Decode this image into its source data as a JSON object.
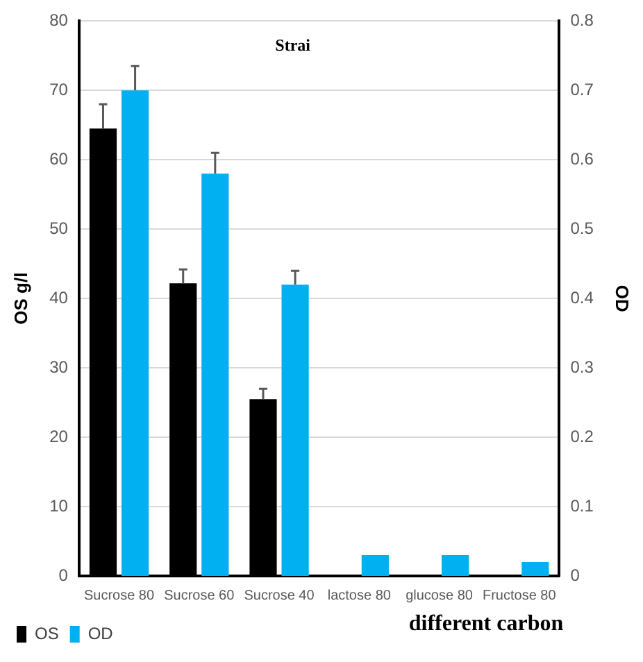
{
  "chart_data": {
    "type": "bar",
    "categories": [
      "Sucrose 80",
      "Sucrose 60",
      "Sucrose 40",
      "lactose 80",
      "glucose 80",
      "Fructose 80"
    ],
    "series": [
      {
        "name": "OS",
        "color": "#000000",
        "values": [
          64.5,
          42.2,
          25.5,
          null,
          null,
          null
        ],
        "errors": [
          [
            64.5,
            68
          ],
          [
            42.2,
            44.2
          ],
          [
            25.5,
            27
          ],
          null,
          null,
          null
        ]
      },
      {
        "name": "OD",
        "color": "#00b0f0",
        "axis": "y2",
        "values": [
          0.7,
          0.58,
          0.42,
          0.03,
          0.03,
          0.02
        ],
        "errors": [
          [
            0.7,
            0.735
          ],
          [
            0.58,
            0.61
          ],
          [
            0.42,
            0.44
          ],
          null,
          null,
          null
        ]
      }
    ],
    "xlabel": "different carbon",
    "ylabel": "OS g/l",
    "y2label": "OD",
    "annotations": [
      "Strai"
    ],
    "ylim": [
      0,
      80
    ],
    "yticks": [
      0,
      10,
      20,
      30,
      40,
      50,
      60,
      70,
      80
    ],
    "y2lim": [
      0,
      0.8
    ],
    "y2ticks": [
      0,
      0.1,
      0.2,
      0.3,
      0.4,
      0.5,
      0.6,
      0.7,
      0.8
    ],
    "grid": "y",
    "legend": "bottom left"
  }
}
